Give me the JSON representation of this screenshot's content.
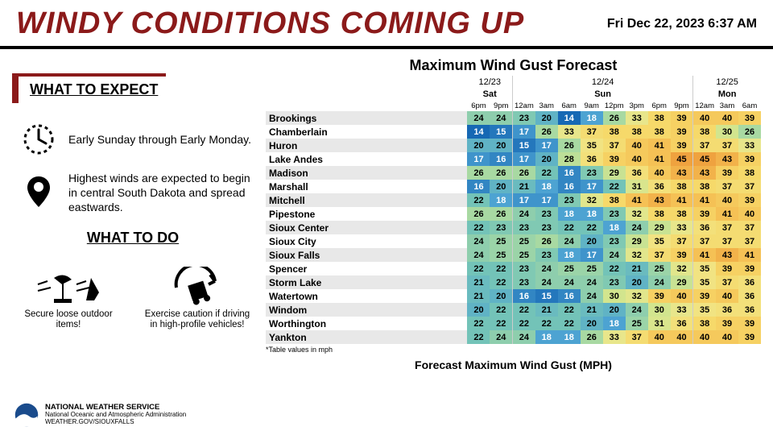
{
  "header": {
    "title": "WINDY CONDITIONS COMING UP",
    "timestamp": "Fri Dec 22, 2023 6:37 AM"
  },
  "left": {
    "expect_title": "WHAT TO EXPECT",
    "expect_items": [
      "Early Sunday through Early Monday.",
      "Highest winds are expected to begin in central South Dakota and spread eastwards."
    ],
    "todo_title": "WHAT TO DO",
    "todo_items": [
      "Secure loose outdoor items!",
      "Exercise caution if driving in high-profile vehicles!"
    ]
  },
  "footer": {
    "line1": "NATIONAL WEATHER SERVICE",
    "line2": "National Oceanic and Atmospheric Administration",
    "line3": "WEATHER.GOV/SIOUXFALLS"
  },
  "table": {
    "title": "Maximum Wind Gust Forecast",
    "note": "*Table values in mph",
    "subtitle": "Forecast Maximum Wind Gust (MPH)",
    "dates": [
      "12/23",
      "12/24",
      "12/25"
    ],
    "days": [
      "Sat",
      "Sun",
      "Mon"
    ],
    "day_spans": [
      2,
      8,
      3
    ],
    "hours": [
      "6pm",
      "9pm",
      "12am",
      "3am",
      "6am",
      "9am",
      "12pm",
      "3pm",
      "6pm",
      "9pm",
      "12am",
      "3am",
      "6am"
    ],
    "cities": [
      "Brookings",
      "Chamberlain",
      "Huron",
      "Lake Andes",
      "Madison",
      "Marshall",
      "Mitchell",
      "Pipestone",
      "Sioux Center",
      "Sioux City",
      "Sioux Falls",
      "Spencer",
      "Storm Lake",
      "Watertown",
      "Windom",
      "Worthington",
      "Yankton"
    ],
    "values": [
      [
        24,
        24,
        23,
        20,
        14,
        18,
        26,
        33,
        38,
        39,
        40,
        40,
        39
      ],
      [
        14,
        15,
        17,
        26,
        33,
        37,
        38,
        38,
        38,
        39,
        38,
        30,
        26
      ],
      [
        20,
        20,
        15,
        17,
        26,
        35,
        37,
        40,
        41,
        39,
        37,
        37,
        33
      ],
      [
        17,
        16,
        17,
        20,
        28,
        36,
        39,
        40,
        41,
        45,
        45,
        43,
        39
      ],
      [
        26,
        26,
        26,
        22,
        16,
        23,
        29,
        36,
        40,
        43,
        43,
        39,
        38
      ],
      [
        16,
        20,
        21,
        18,
        16,
        17,
        22,
        31,
        36,
        38,
        38,
        37,
        37
      ],
      [
        22,
        18,
        17,
        17,
        23,
        32,
        38,
        41,
        43,
        41,
        41,
        40,
        39
      ],
      [
        26,
        26,
        24,
        23,
        18,
        18,
        23,
        32,
        38,
        38,
        39,
        41,
        40
      ],
      [
        22,
        23,
        23,
        23,
        22,
        22,
        18,
        24,
        29,
        33,
        36,
        37,
        37
      ],
      [
        24,
        25,
        25,
        26,
        24,
        20,
        23,
        29,
        35,
        37,
        37,
        37,
        37
      ],
      [
        24,
        25,
        25,
        23,
        18,
        17,
        24,
        32,
        37,
        39,
        41,
        43,
        41
      ],
      [
        22,
        22,
        23,
        24,
        25,
        25,
        22,
        21,
        25,
        32,
        35,
        39,
        39
      ],
      [
        21,
        22,
        23,
        24,
        24,
        24,
        23,
        20,
        24,
        29,
        35,
        37,
        36
      ],
      [
        21,
        20,
        16,
        15,
        16,
        24,
        30,
        32,
        39,
        40,
        39,
        40,
        36
      ],
      [
        20,
        22,
        22,
        21,
        22,
        21,
        20,
        24,
        30,
        33,
        35,
        36,
        36
      ],
      [
        22,
        22,
        22,
        22,
        22,
        20,
        18,
        25,
        31,
        36,
        38,
        39,
        39
      ],
      [
        22,
        24,
        24,
        18,
        18,
        26,
        33,
        37,
        40,
        40,
        40,
        40,
        39
      ]
    ],
    "color_stops": [
      {
        "v": 14,
        "c": "#1668b4"
      },
      {
        "v": 18,
        "c": "#4da3d2"
      },
      {
        "v": 22,
        "c": "#73c3b8"
      },
      {
        "v": 26,
        "c": "#a8d9a2"
      },
      {
        "v": 30,
        "c": "#d2e58e"
      },
      {
        "v": 34,
        "c": "#efe68a"
      },
      {
        "v": 38,
        "c": "#f6d96a"
      },
      {
        "v": 41,
        "c": "#f5c155"
      },
      {
        "v": 45,
        "c": "#efa23f"
      }
    ]
  }
}
